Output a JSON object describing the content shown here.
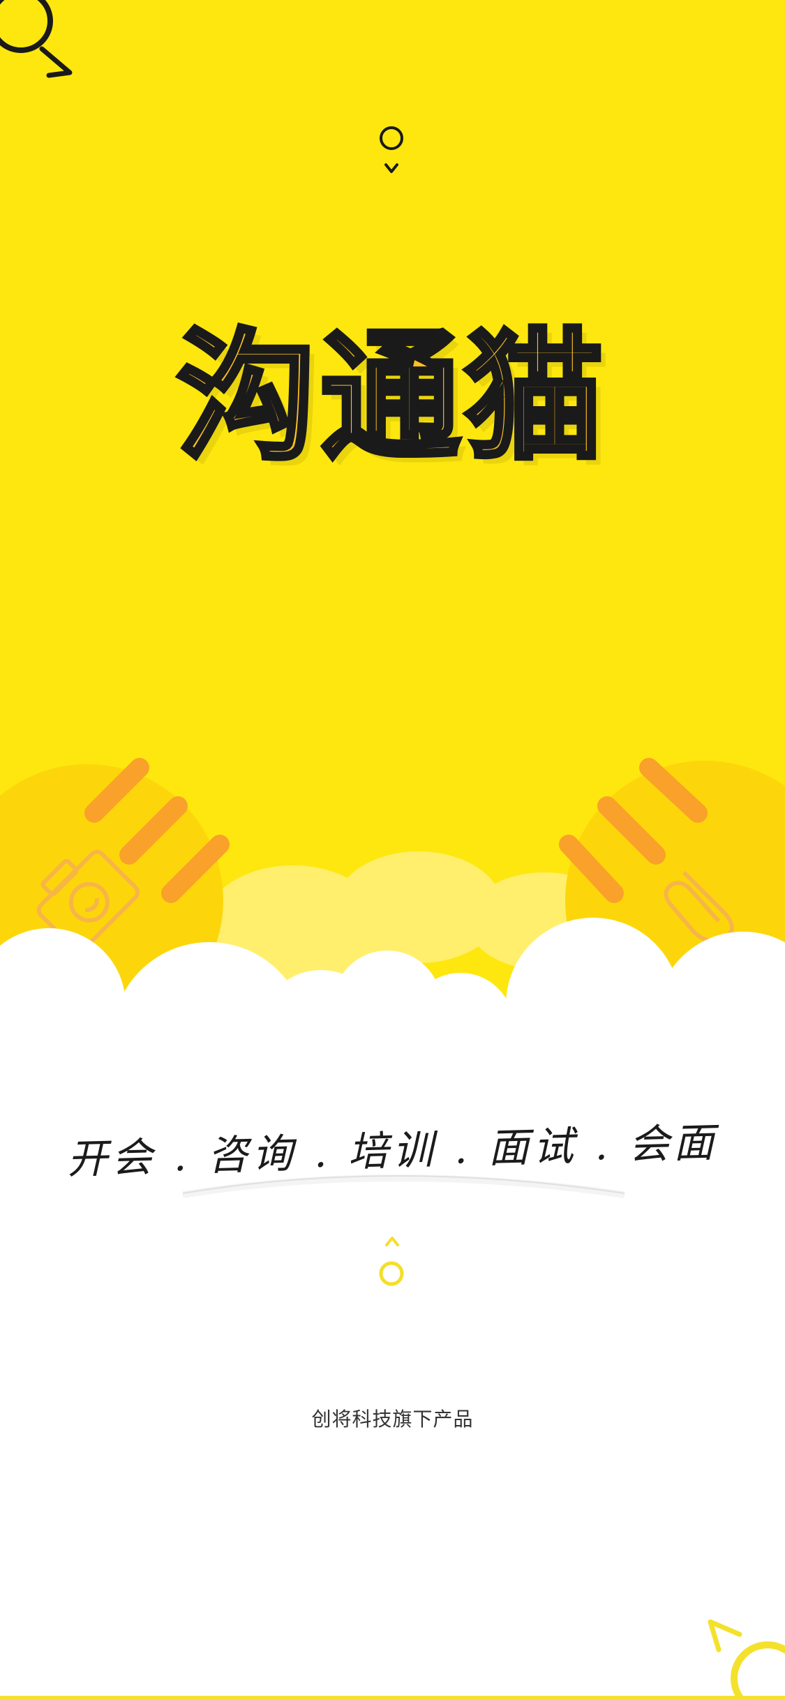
{
  "app": {
    "title": "沟通猫",
    "tagline": "开会 . 咨询 . 培训 . 面试 . 会面",
    "footer": "创将科技旗下产品"
  },
  "colors": {
    "brand_yellow": "#FDE70F",
    "accent_orange": "#F9A12A",
    "logo_fill": "#FFC21F",
    "outline": "#1a1a1a",
    "cloud": "#ffffff"
  },
  "icons": {
    "left_orb": "camera-icon",
    "right_orb": "paperclip-icon",
    "top_marker": "location-pin-icon",
    "bottom_marker": "scroll-up-icon"
  }
}
